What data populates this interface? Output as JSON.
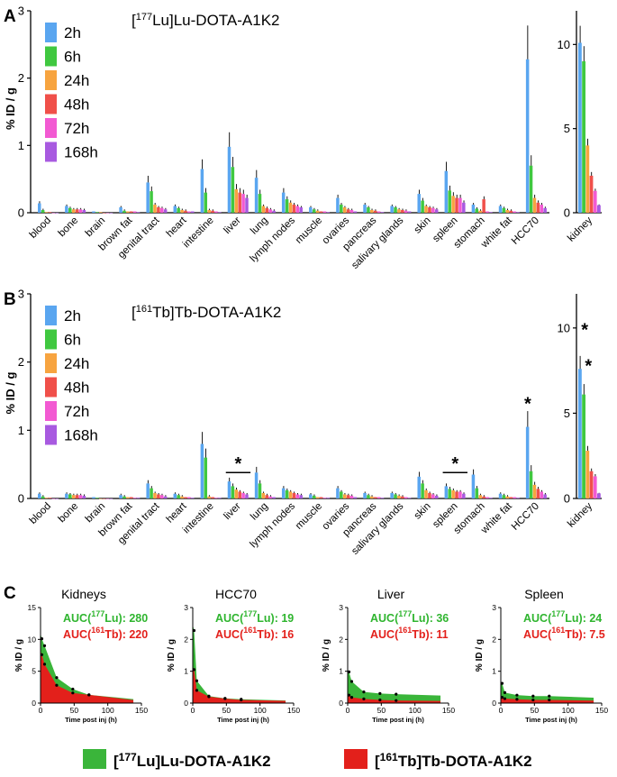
{
  "colors": {
    "2h": "#5aa6f0",
    "6h": "#40c840",
    "24h": "#f7a440",
    "48h": "#f0504a",
    "72h": "#f25ad2",
    "168h": "#a85ae0",
    "lu_area": "#3ab53a",
    "tb_area": "#e3201b"
  },
  "panels": {
    "A": {
      "letter": "A",
      "title_pre": "[",
      "title_sup": "177",
      "title_post": "Lu]Lu-DOTA-A1K2"
    },
    "B": {
      "letter": "B",
      "title_pre": "[",
      "title_sup": "161",
      "title_post": "Tb]Tb-DOTA-A1K2"
    },
    "C": {
      "letter": "C"
    }
  },
  "legend": [
    "2h",
    "6h",
    "24h",
    "48h",
    "72h",
    "168h"
  ],
  "ylabel": "% ID / g",
  "organs": [
    "blood",
    "bone",
    "brain",
    "brown fat",
    "genital tract",
    "heart",
    "intestine",
    "liver",
    "lung",
    "lymph nodes",
    "muscle",
    "ovaries",
    "pancreas",
    "salivary glands",
    "skin",
    "spleen",
    "stomach",
    "white fat",
    "HCC70"
  ],
  "kidney_label": "kidney",
  "significance_marker": "*",
  "auc_lu_label_pre": "AUC(",
  "auc_lu_label_sup": "177",
  "auc_lu_label_post": "Lu): ",
  "auc_tb_label_pre": "AUC(",
  "auc_tb_label_sup": "161",
  "auc_tb_label_post": "Tb): ",
  "bottom_legend": {
    "lu": {
      "pre": "[",
      "sup": "177",
      "post": "Lu]Lu-DOTA-A1K2"
    },
    "tb": {
      "pre": "[",
      "sup": "161",
      "post": "Tb]Tb-DOTA-A1K2"
    }
  },
  "chart_data": [
    {
      "type": "bar",
      "panel": "A",
      "ylabel": "% ID / g",
      "ylim": [
        0,
        3
      ],
      "yticks": [
        0,
        1,
        2,
        3
      ],
      "categories": [
        "blood",
        "bone",
        "brain",
        "brown fat",
        "genital tract",
        "heart",
        "intestine",
        "liver",
        "lung",
        "lymph nodes",
        "muscle",
        "ovaries",
        "pancreas",
        "salivary glands",
        "skin",
        "spleen",
        "stomach",
        "white fat",
        "HCC70"
      ],
      "series": [
        {
          "name": "2h",
          "values": [
            0.14,
            0.1,
            0.02,
            0.08,
            0.45,
            0.1,
            0.65,
            0.98,
            0.52,
            0.3,
            0.08,
            0.22,
            0.12,
            0.1,
            0.28,
            0.62,
            0.12,
            0.1,
            2.28
          ]
        },
        {
          "name": "6h",
          "values": [
            0.04,
            0.07,
            0.01,
            0.03,
            0.32,
            0.07,
            0.3,
            0.68,
            0.28,
            0.2,
            0.05,
            0.12,
            0.08,
            0.08,
            0.18,
            0.33,
            0.06,
            0.07,
            0.7
          ]
        },
        {
          "name": "24h",
          "values": [
            0.01,
            0.05,
            0.01,
            0.02,
            0.12,
            0.04,
            0.04,
            0.35,
            0.1,
            0.15,
            0.03,
            0.08,
            0.04,
            0.05,
            0.1,
            0.25,
            0.03,
            0.04,
            0.22
          ]
        },
        {
          "name": "48h",
          "values": [
            0.01,
            0.05,
            0.0,
            0.02,
            0.08,
            0.03,
            0.03,
            0.3,
            0.07,
            0.12,
            0.02,
            0.05,
            0.03,
            0.04,
            0.08,
            0.22,
            0.2,
            0.03,
            0.15
          ]
        },
        {
          "name": "72h",
          "values": [
            0.0,
            0.05,
            0.0,
            0.02,
            0.07,
            0.02,
            0.02,
            0.28,
            0.05,
            0.1,
            0.02,
            0.04,
            0.02,
            0.03,
            0.07,
            0.22,
            0.02,
            0.02,
            0.12
          ]
        },
        {
          "name": "168h",
          "values": [
            0.0,
            0.04,
            0.0,
            0.01,
            0.05,
            0.02,
            0.01,
            0.22,
            0.03,
            0.08,
            0.01,
            0.02,
            0.01,
            0.02,
            0.05,
            0.15,
            0.01,
            0.01,
            0.07
          ]
        }
      ]
    },
    {
      "type": "bar",
      "panel": "A-kidney",
      "ylim": [
        0,
        12
      ],
      "yticks": [
        0,
        5,
        10
      ],
      "categories": [
        "kidney"
      ],
      "series": [
        {
          "name": "2h",
          "values": [
            10.1
          ]
        },
        {
          "name": "6h",
          "values": [
            9.0
          ]
        },
        {
          "name": "24h",
          "values": [
            4.0
          ]
        },
        {
          "name": "48h",
          "values": [
            2.2
          ]
        },
        {
          "name": "72h",
          "values": [
            1.3
          ]
        },
        {
          "name": "168h",
          "values": [
            0.45
          ]
        }
      ]
    },
    {
      "type": "bar",
      "panel": "B",
      "ylabel": "% ID / g",
      "ylim": [
        0,
        3
      ],
      "yticks": [
        0,
        1,
        2,
        3
      ],
      "categories": [
        "blood",
        "bone",
        "brain",
        "brown fat",
        "genital tract",
        "heart",
        "intestine",
        "liver",
        "lung",
        "lymph nodes",
        "muscle",
        "ovaries",
        "pancreas",
        "salivary glands",
        "skin",
        "spleen",
        "stomach",
        "white fat",
        "HCC70"
      ],
      "series": [
        {
          "name": "2h",
          "values": [
            0.07,
            0.07,
            0.02,
            0.05,
            0.22,
            0.07,
            0.8,
            0.25,
            0.38,
            0.15,
            0.06,
            0.15,
            0.08,
            0.08,
            0.32,
            0.18,
            0.35,
            0.07,
            1.05
          ]
        },
        {
          "name": "6h",
          "values": [
            0.03,
            0.06,
            0.01,
            0.03,
            0.15,
            0.05,
            0.6,
            0.18,
            0.22,
            0.12,
            0.04,
            0.1,
            0.05,
            0.06,
            0.22,
            0.14,
            0.15,
            0.05,
            0.4
          ]
        },
        {
          "name": "24h",
          "values": [
            0.01,
            0.05,
            0.0,
            0.02,
            0.08,
            0.03,
            0.03,
            0.13,
            0.08,
            0.1,
            0.02,
            0.06,
            0.03,
            0.04,
            0.12,
            0.12,
            0.05,
            0.03,
            0.2
          ]
        },
        {
          "name": "48h",
          "values": [
            0.01,
            0.05,
            0.0,
            0.02,
            0.06,
            0.02,
            0.02,
            0.1,
            0.05,
            0.08,
            0.02,
            0.05,
            0.02,
            0.03,
            0.08,
            0.1,
            0.03,
            0.02,
            0.14
          ]
        },
        {
          "name": "72h",
          "values": [
            0.0,
            0.05,
            0.0,
            0.01,
            0.05,
            0.02,
            0.01,
            0.08,
            0.03,
            0.06,
            0.01,
            0.04,
            0.02,
            0.02,
            0.06,
            0.1,
            0.02,
            0.02,
            0.1
          ]
        },
        {
          "name": "168h",
          "values": [
            0.0,
            0.04,
            0.0,
            0.01,
            0.03,
            0.01,
            0.01,
            0.06,
            0.02,
            0.05,
            0.01,
            0.02,
            0.01,
            0.01,
            0.04,
            0.07,
            0.01,
            0.01,
            0.06
          ]
        }
      ],
      "significance": [
        {
          "type": "bracket",
          "from": "liver",
          "to": "liver",
          "value": 0.38
        },
        {
          "type": "bracket",
          "from": "spleen",
          "to": "spleen",
          "value": 0.38
        },
        {
          "type": "star",
          "category": "HCC70",
          "value": 1.38
        }
      ]
    },
    {
      "type": "bar",
      "panel": "B-kidney",
      "ylim": [
        0,
        12
      ],
      "yticks": [
        0,
        5,
        10
      ],
      "categories": [
        "kidney"
      ],
      "series": [
        {
          "name": "2h",
          "values": [
            7.6
          ]
        },
        {
          "name": "6h",
          "values": [
            6.1
          ]
        },
        {
          "name": "24h",
          "values": [
            2.8
          ]
        },
        {
          "name": "48h",
          "values": [
            1.6
          ]
        },
        {
          "name": "72h",
          "values": [
            1.3
          ]
        },
        {
          "name": "168h",
          "values": [
            0.3
          ]
        }
      ],
      "significance": [
        {
          "type": "star",
          "series": "2h",
          "value": 9.9
        },
        {
          "type": "star",
          "series": "6h",
          "value": 7.8
        }
      ]
    },
    {
      "type": "area",
      "panel": "C",
      "title": "Kidneys",
      "xlabel": "Time post inj (h)",
      "ylabel": "% ID / g",
      "xlim": [
        0,
        150
      ],
      "xticks": [
        0,
        50,
        100,
        150
      ],
      "ylim": [
        0,
        15
      ],
      "yticks": [
        0,
        5,
        10,
        15
      ],
      "auc_lu": "280",
      "auc_tb": "220",
      "series": [
        {
          "name": "[177Lu]Lu-DOTA-A1K2",
          "x": [
            2,
            6,
            24,
            48,
            72,
            168
          ],
          "y": [
            10.1,
            9.0,
            4.0,
            2.2,
            1.3,
            0.45
          ]
        },
        {
          "name": "[161Tb]Tb-DOTA-A1K2",
          "x": [
            2,
            6,
            24,
            48,
            72,
            168
          ],
          "y": [
            7.6,
            6.1,
            2.8,
            1.6,
            1.3,
            0.3
          ]
        }
      ]
    },
    {
      "type": "area",
      "panel": "C",
      "title": "HCC70",
      "xlabel": "Time post inj (h)",
      "ylabel": "% ID / g",
      "xlim": [
        0,
        150
      ],
      "xticks": [
        0,
        50,
        100,
        150
      ],
      "ylim": [
        0,
        3
      ],
      "yticks": [
        0,
        1,
        2,
        3
      ],
      "auc_lu": "19",
      "auc_tb": "16",
      "series": [
        {
          "name": "[177Lu]Lu-DOTA-A1K2",
          "x": [
            2,
            6,
            24,
            48,
            72,
            168
          ],
          "y": [
            2.28,
            0.7,
            0.22,
            0.15,
            0.12,
            0.07
          ]
        },
        {
          "name": "[161Tb]Tb-DOTA-A1K2",
          "x": [
            2,
            6,
            24,
            48,
            72,
            168
          ],
          "y": [
            1.05,
            0.4,
            0.2,
            0.14,
            0.1,
            0.06
          ]
        }
      ]
    },
    {
      "type": "area",
      "panel": "C",
      "title": "Liver",
      "xlabel": "Time post inj (h)",
      "ylabel": "% ID / g",
      "xlim": [
        0,
        150
      ],
      "xticks": [
        0,
        50,
        100,
        150
      ],
      "ylim": [
        0,
        3
      ],
      "yticks": [
        0,
        1,
        2,
        3
      ],
      "auc_lu": "36",
      "auc_tb": "11",
      "series": [
        {
          "name": "[177Lu]Lu-DOTA-A1K2",
          "x": [
            2,
            6,
            24,
            48,
            72,
            168
          ],
          "y": [
            0.98,
            0.68,
            0.35,
            0.3,
            0.28,
            0.22
          ]
        },
        {
          "name": "[161Tb]Tb-DOTA-A1K2",
          "x": [
            2,
            6,
            24,
            48,
            72,
            168
          ],
          "y": [
            0.25,
            0.18,
            0.13,
            0.1,
            0.08,
            0.06
          ]
        }
      ]
    },
    {
      "type": "area",
      "panel": "C",
      "title": "Spleen",
      "xlabel": "Time post inj (h)",
      "ylabel": "% ID / g",
      "xlim": [
        0,
        150
      ],
      "xticks": [
        0,
        50,
        100,
        150
      ],
      "ylim": [
        0,
        3
      ],
      "yticks": [
        0,
        1,
        2,
        3
      ],
      "auc_lu": "24",
      "auc_tb": "7.5",
      "series": [
        {
          "name": "[177Lu]Lu-DOTA-A1K2",
          "x": [
            2,
            6,
            24,
            48,
            72,
            168
          ],
          "y": [
            0.62,
            0.33,
            0.25,
            0.22,
            0.22,
            0.15
          ]
        },
        {
          "name": "[161Tb]Tb-DOTA-A1K2",
          "x": [
            2,
            6,
            24,
            48,
            72,
            168
          ],
          "y": [
            0.18,
            0.14,
            0.12,
            0.1,
            0.1,
            0.07
          ]
        }
      ]
    }
  ]
}
